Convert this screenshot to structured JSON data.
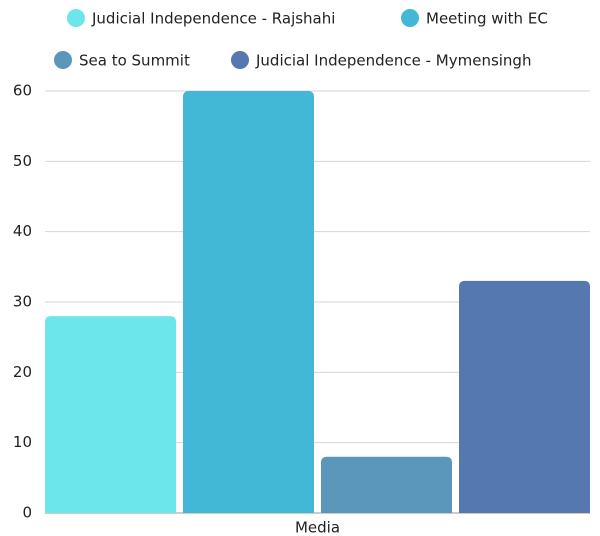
{
  "chart_data": {
    "type": "bar",
    "categories": [
      "Media"
    ],
    "series": [
      {
        "name": "Judicial Independence - Rajshahi",
        "color": "#6de6e9",
        "values": [
          28
        ]
      },
      {
        "name": "Meeting with EC",
        "color": "#43b8d6",
        "values": [
          60
        ]
      },
      {
        "name": "Sea to Summit",
        "color": "#5a97bb",
        "values": [
          8
        ]
      },
      {
        "name": "Judicial Independence - Mymensingh",
        "color": "#5578b0",
        "values": [
          33
        ]
      }
    ],
    "ylim": [
      0,
      60
    ],
    "yticks": [
      0,
      10,
      20,
      30,
      40,
      50,
      60
    ],
    "grid": true,
    "legend": "top"
  }
}
